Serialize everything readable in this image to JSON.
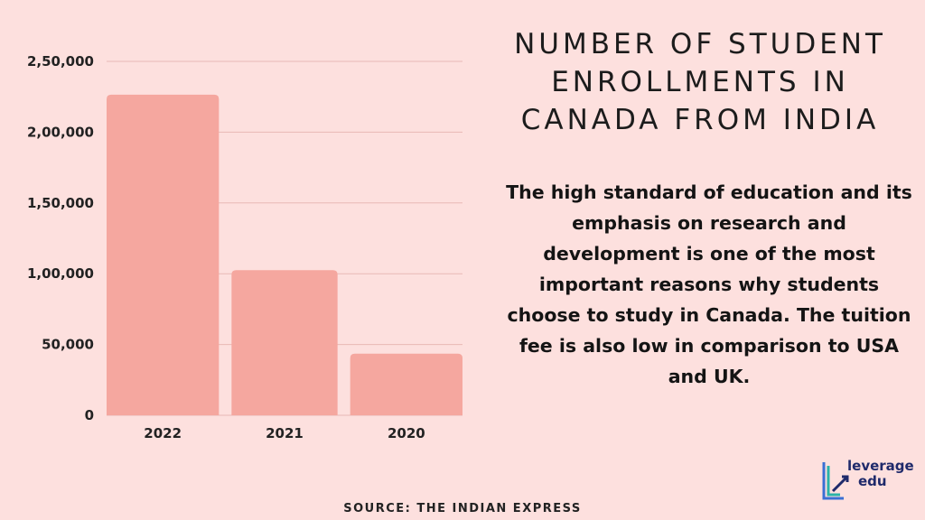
{
  "title": "NUMBER OF STUDENT ENROLLMENTS IN CANADA FROM INDIA",
  "description": "The high standard of education and its emphasis on research and development is one of the most important reasons why students choose to study in Canada. The tuition fee is also low in comparison to USA and UK.",
  "source": "SOURCE: THE INDIAN EXPRESS",
  "logo": {
    "line1": "leverage",
    "line2": "edu"
  },
  "colors": {
    "background": "#fde0de",
    "bar": "#f5a79f",
    "grid": "#e8b9b5",
    "text": "#1c1c1c",
    "logo": "#1f2a6b"
  },
  "chart_data": {
    "type": "bar",
    "categories": [
      "2022",
      "2021",
      "2020"
    ],
    "values": [
      226450,
      102500,
      43500
    ],
    "ylim": [
      0,
      250000
    ],
    "yticks": [
      0,
      50000,
      100000,
      150000,
      200000,
      250000
    ],
    "ytick_labels": [
      "0",
      "50,000",
      "1,00,000",
      "1,50,000",
      "2,00,000",
      "2,50,000"
    ],
    "grid": true,
    "title": "",
    "xlabel": "",
    "ylabel": ""
  }
}
